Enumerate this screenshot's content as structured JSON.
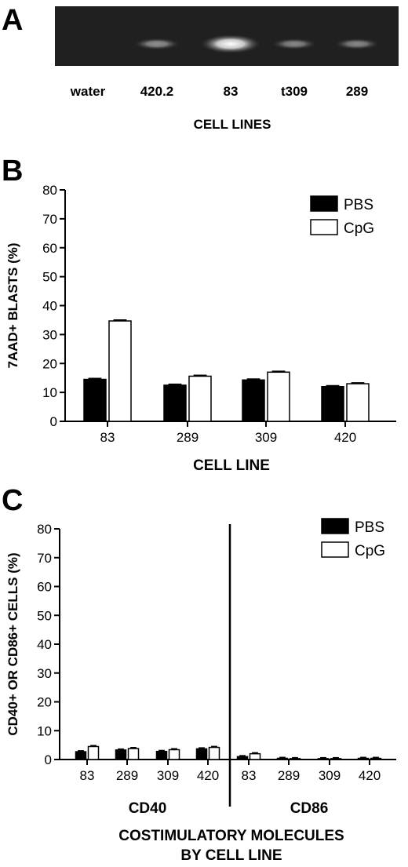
{
  "panel_a": {
    "letter": "A",
    "lanes": [
      "water",
      "420.2",
      "83",
      "t309",
      "289"
    ],
    "band_intensity": [
      0.0,
      0.35,
      1.0,
      0.3,
      0.3
    ],
    "xlabel": "CELL LINES"
  },
  "chart_data": [
    {
      "type": "bar",
      "panel": "B",
      "categories": [
        "83",
        "289",
        "309",
        "420"
      ],
      "series": [
        {
          "name": "PBS",
          "values": [
            14.5,
            12.5,
            14.3,
            12.0
          ],
          "color": "#000000"
        },
        {
          "name": "CpG",
          "values": [
            34.7,
            15.6,
            17.0,
            13.0
          ],
          "color": "#ffffff"
        }
      ],
      "xlabel": "CELL LINE",
      "ylabel": "7AAD+ BLASTS (%)",
      "ylim": [
        0,
        80
      ],
      "yticks": [
        "0",
        "10",
        "20",
        "30",
        "40",
        "50",
        "60",
        "70",
        "80"
      ],
      "legend": "top-right",
      "grid": false
    },
    {
      "type": "bar",
      "panel": "C",
      "groups": [
        "CD40",
        "CD86"
      ],
      "categories": [
        "83",
        "289",
        "309",
        "420",
        "83",
        "289",
        "309",
        "420"
      ],
      "series": [
        {
          "name": "PBS",
          "values": [
            2.7,
            3.3,
            2.8,
            3.7,
            1.0,
            0.4,
            0.3,
            0.4
          ],
          "color": "#000000"
        },
        {
          "name": "CpG",
          "values": [
            4.5,
            3.8,
            3.4,
            4.2,
            2.0,
            0.3,
            0.3,
            0.4
          ],
          "color": "#ffffff"
        }
      ],
      "xlabel": "COSTIMULATORY MOLECULES",
      "xlabel2": "BY CELL LINE",
      "ylabel": "CD40+ OR CD86+ CELLS (%)",
      "ylim": [
        0,
        80
      ],
      "yticks": [
        "0",
        "10",
        "20",
        "30",
        "40",
        "50",
        "60",
        "70",
        "80"
      ],
      "legend": "top-right",
      "grid": false
    }
  ]
}
